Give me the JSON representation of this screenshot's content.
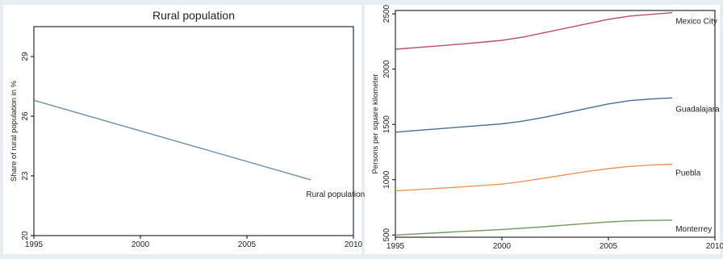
{
  "chart_data": [
    {
      "type": "line",
      "title": "Rural population",
      "xlabel": "",
      "ylabel": "Share of rural population in %",
      "xlim": [
        1995,
        2010
      ],
      "ylim": [
        20,
        30.5
      ],
      "xticks": [
        1995,
        2000,
        2005,
        2010
      ],
      "yticks": [
        20,
        23,
        26,
        29
      ],
      "grid": false,
      "series": [
        {
          "name": "Rural population",
          "color": "#6d8fb0",
          "x": [
            1995,
            2008
          ],
          "y": [
            26.8,
            22.8
          ]
        }
      ]
    },
    {
      "type": "line",
      "title": "",
      "xlabel": "",
      "ylabel": "Persons per square kilometer",
      "xlim": [
        1995,
        2010
      ],
      "ylim": [
        480,
        2530
      ],
      "xticks": [
        1995,
        2000,
        2005,
        2010
      ],
      "yticks": [
        500,
        1000,
        1500,
        2000,
        2500
      ],
      "grid": false,
      "series": [
        {
          "name": "Mexico City",
          "color": "#b85060",
          "x": [
            1995,
            1996,
            1997,
            1998,
            1999,
            2000,
            2001,
            2002,
            2003,
            2004,
            2005,
            2006,
            2007,
            2008
          ],
          "y": [
            2180,
            2195,
            2210,
            2225,
            2242,
            2260,
            2290,
            2330,
            2370,
            2410,
            2450,
            2480,
            2495,
            2510
          ]
        },
        {
          "name": "Guadalajara",
          "color": "#4a6f93",
          "x": [
            1995,
            1996,
            1997,
            1998,
            1999,
            2000,
            2001,
            2002,
            2003,
            2004,
            2005,
            2006,
            2007,
            2008
          ],
          "y": [
            1430,
            1445,
            1460,
            1475,
            1490,
            1505,
            1530,
            1565,
            1605,
            1645,
            1685,
            1715,
            1730,
            1740
          ]
        },
        {
          "name": "Puebla",
          "color": "#e8955a",
          "x": [
            1995,
            1996,
            1997,
            1998,
            1999,
            2000,
            2001,
            2002,
            2003,
            2004,
            2005,
            2006,
            2007,
            2008
          ],
          "y": [
            900,
            910,
            922,
            934,
            946,
            960,
            985,
            1015,
            1045,
            1075,
            1100,
            1120,
            1132,
            1140
          ]
        },
        {
          "name": "Monterrey",
          "color": "#6e9a5e",
          "x": [
            1995,
            1996,
            1997,
            1998,
            1999,
            2000,
            2001,
            2002,
            2003,
            2004,
            2005,
            2006,
            2007,
            2008
          ],
          "y": [
            500,
            510,
            520,
            530,
            540,
            550,
            562,
            575,
            590,
            605,
            618,
            628,
            632,
            635
          ]
        }
      ]
    }
  ]
}
